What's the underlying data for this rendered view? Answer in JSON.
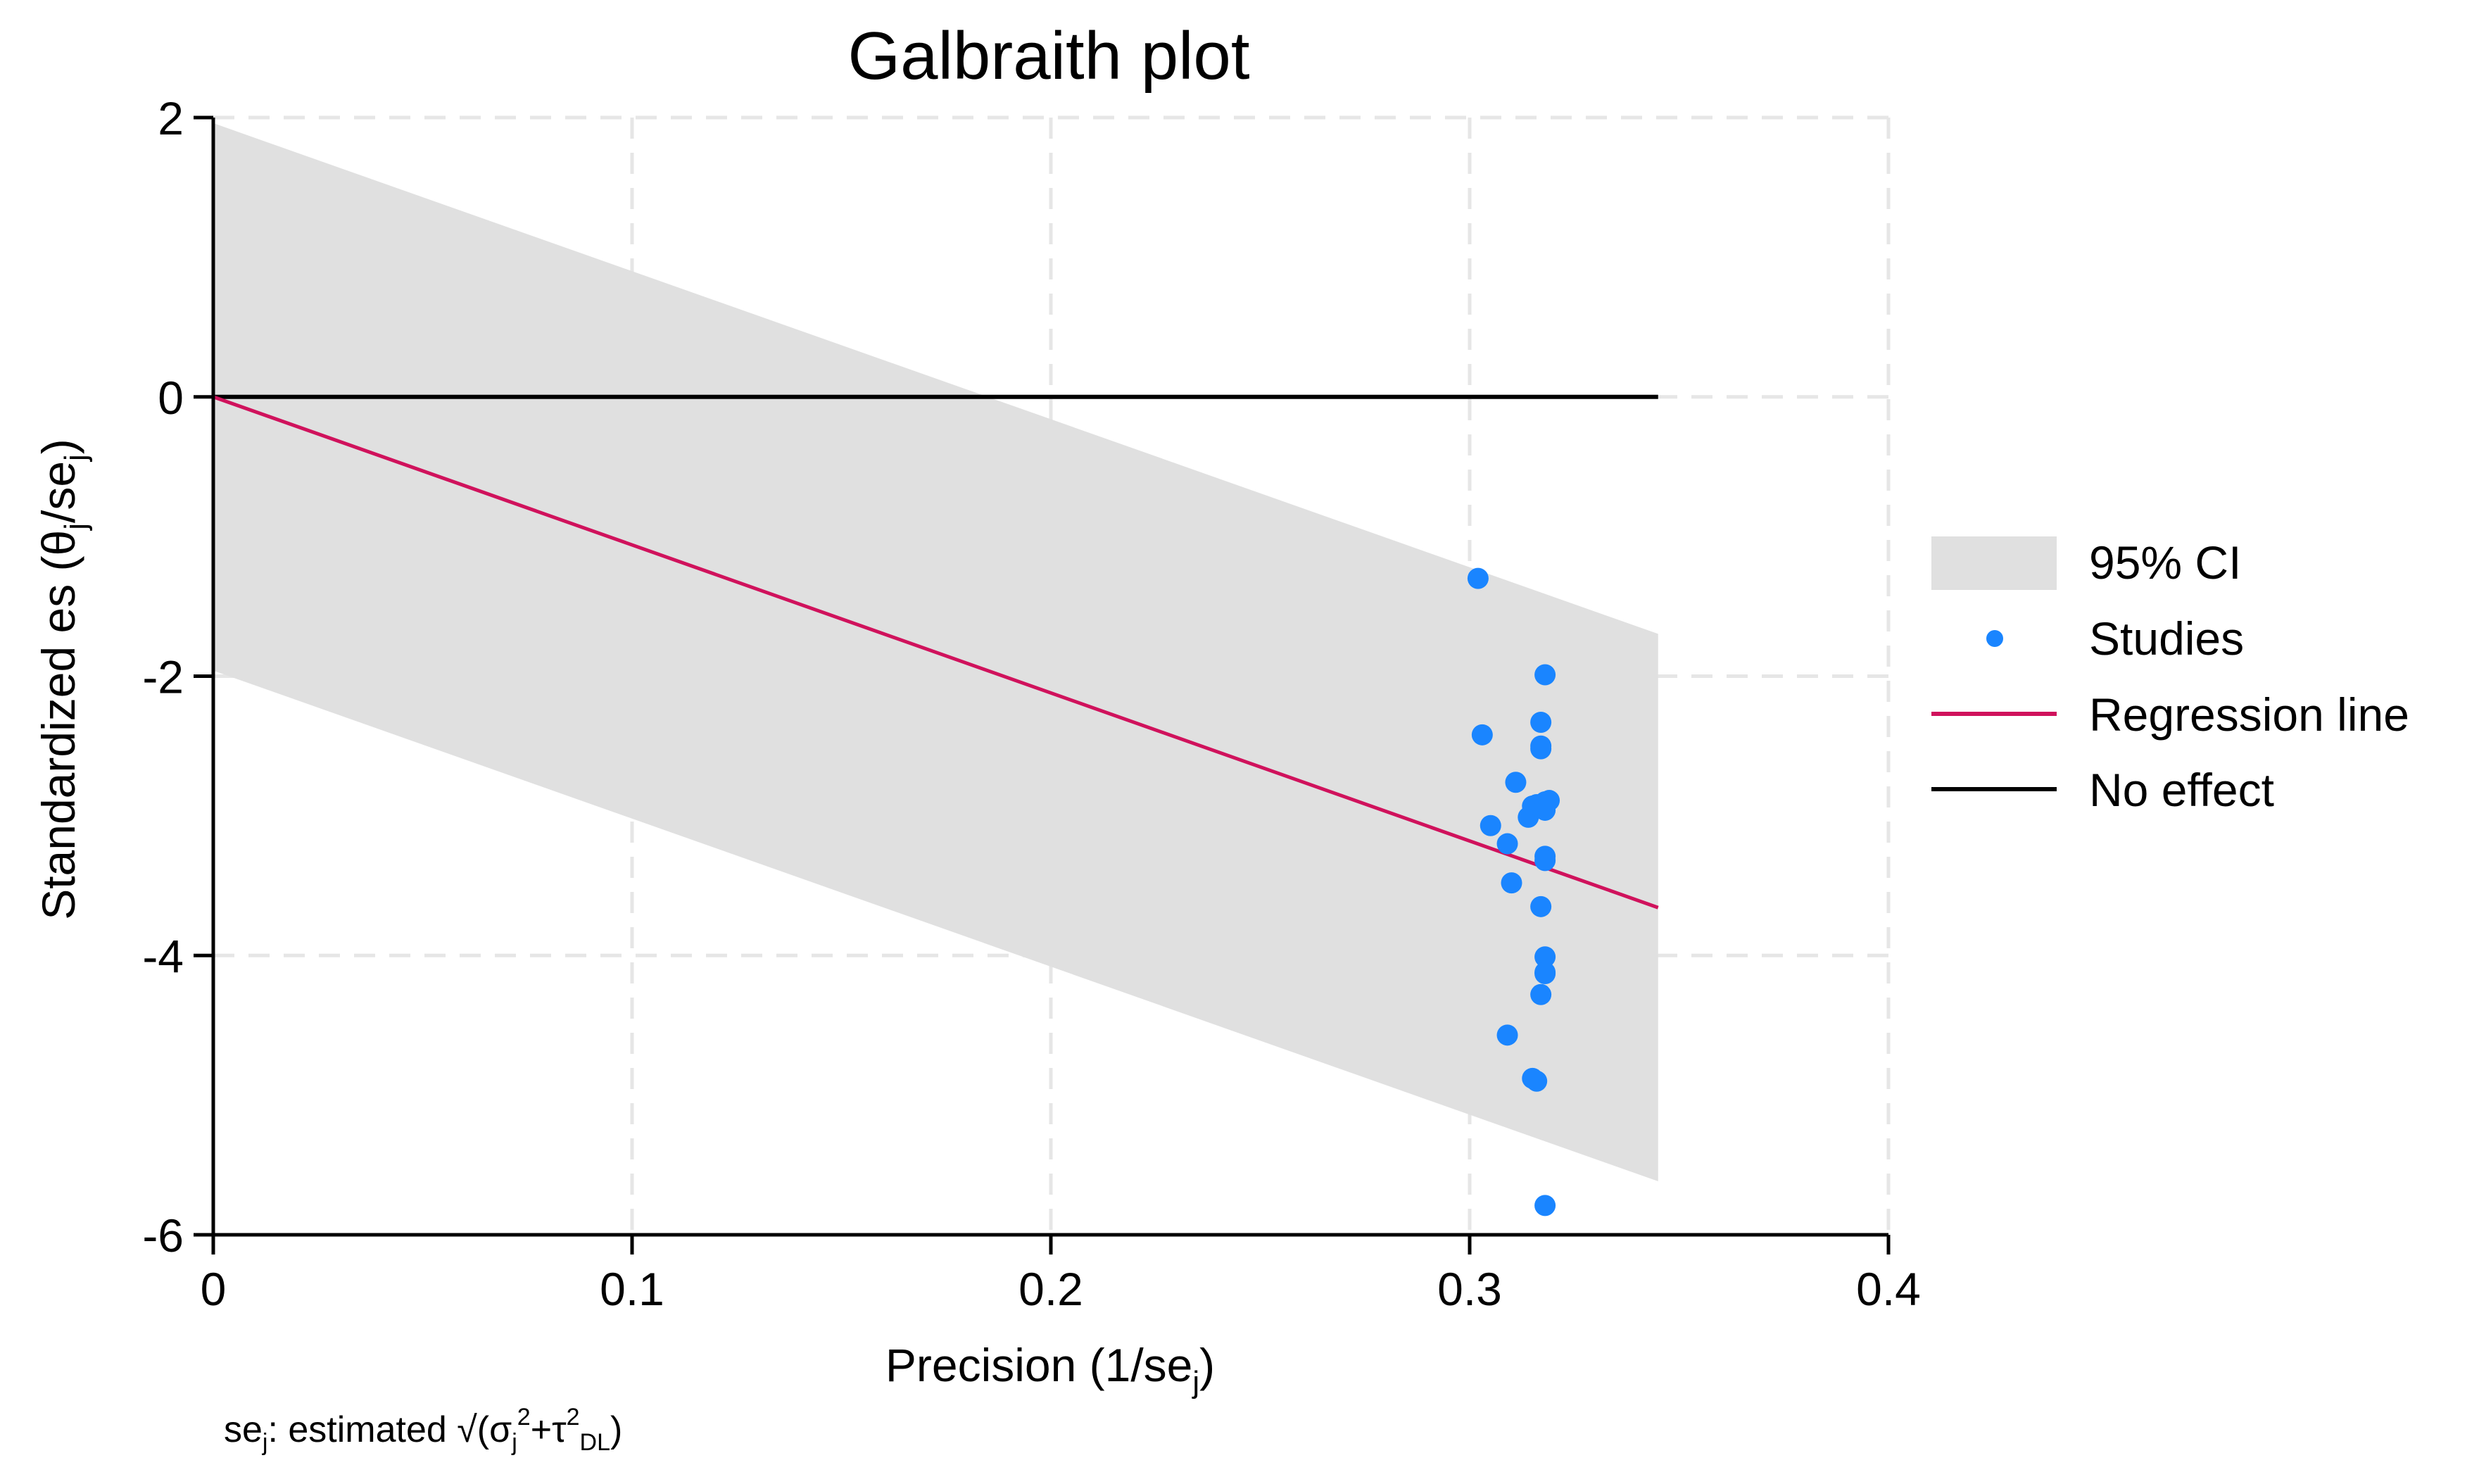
{
  "chart_data": {
    "type": "scatter",
    "title": "Galbraith plot",
    "xlabel": {
      "main": "Precision (1/se",
      "sub": "j",
      "close": ")"
    },
    "ylabel": {
      "main": "Standardized es  (θ",
      "sub1": "j",
      "mid": "/se",
      "sub2": "j",
      "close": ")"
    },
    "note": {
      "pre": "se",
      "sub": "j",
      "mid": ": estimated √(σ",
      "sub2": "j",
      "sup2": "2",
      "plus": "+τ",
      "sup3": "2",
      "sub3": "DL",
      "close": ")"
    },
    "xlim": [
      0,
      0.4
    ],
    "ylim": [
      -6,
      2
    ],
    "xticks": [
      0,
      0.1,
      0.2,
      0.3,
      0.4
    ],
    "xtick_labels": [
      "0",
      "0.1",
      "0.2",
      "0.3",
      "0.4"
    ],
    "yticks": [
      -6,
      -4,
      -2,
      0,
      2
    ],
    "ytick_labels": [
      "-6",
      "-4",
      "-2",
      "0",
      "2"
    ],
    "grid": true,
    "legend_position": "right",
    "legend": [
      {
        "key": "ci",
        "label": "95% CI"
      },
      {
        "key": "studies",
        "label": "Studies"
      },
      {
        "key": "regression",
        "label": "Regression line"
      },
      {
        "key": "noeffect",
        "label": "No effect"
      }
    ],
    "colors": {
      "ci_band": "#e0e0e0",
      "points": "#1a85ff",
      "regression": "#d0125c",
      "no_effect": "#000000",
      "grid": "#e6e6e6"
    },
    "regression_line": {
      "slope": -10.6,
      "intercept": 0,
      "x_range": [
        0,
        0.345
      ]
    },
    "ci_band": {
      "half_width": 1.96
    },
    "no_effect_line": {
      "y": 0,
      "x_range": [
        0,
        0.345
      ]
    },
    "series": [
      {
        "name": "Studies",
        "x": [
          0.302,
          0.303,
          0.305,
          0.309,
          0.31,
          0.311,
          0.309,
          0.314,
          0.315,
          0.316,
          0.316,
          0.315,
          0.317,
          0.317,
          0.317,
          0.317,
          0.317,
          0.318,
          0.318,
          0.318,
          0.318,
          0.318,
          0.318,
          0.318,
          0.319,
          0.318,
          0.318
        ],
        "y": [
          -1.3,
          -2.42,
          -3.07,
          -3.2,
          -3.48,
          -2.76,
          -4.57,
          -3.01,
          -2.93,
          -2.92,
          -4.9,
          -4.88,
          -2.33,
          -2.5,
          -2.52,
          -3.65,
          -4.28,
          -1.99,
          -2.9,
          -2.96,
          -3.29,
          -3.32,
          -4.01,
          -4.13,
          -2.89,
          -4.12,
          -5.79
        ]
      }
    ]
  }
}
